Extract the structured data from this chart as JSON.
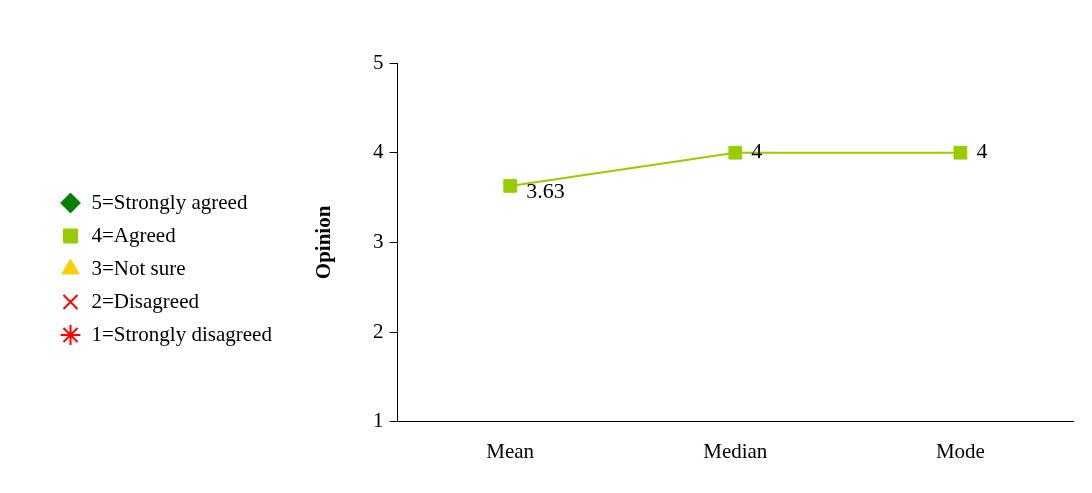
{
  "chart_data": {
    "type": "line",
    "categories": [
      "Mean",
      "Median",
      "Mode"
    ],
    "ylabel": "Opinion",
    "ylim": [
      1,
      5
    ],
    "yticks": [
      1,
      2,
      3,
      4,
      5
    ],
    "grid": false,
    "legend": "left",
    "data_labels": true,
    "series": [
      {
        "name": "5=Strongly agreed",
        "color": "#008000",
        "marker": "diamond",
        "values": [
          null,
          null,
          null
        ]
      },
      {
        "name": "4=Agreed",
        "color": "#99cc00",
        "marker": "square",
        "values": [
          3.63,
          4,
          4
        ]
      },
      {
        "name": "3=Not sure",
        "color": "#ffcc00",
        "marker": "triangle",
        "values": [
          null,
          null,
          null
        ]
      },
      {
        "name": "2=Disagreed",
        "color": "#ff0000",
        "marker": "cross",
        "values": [
          null,
          null,
          null
        ]
      },
      {
        "name": "1=Strongly disagreed",
        "color": "#ff0000",
        "marker": "star",
        "values": [
          null,
          null,
          null
        ]
      }
    ]
  }
}
